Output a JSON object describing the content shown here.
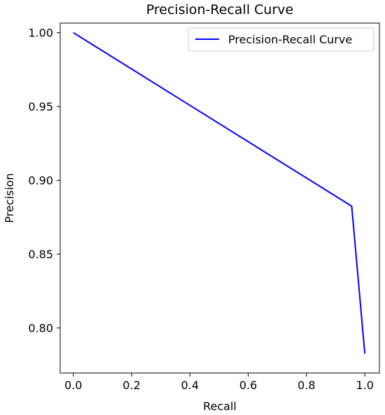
{
  "chart_data": {
    "type": "line",
    "title": "Precision-Recall Curve",
    "xlabel": "Recall",
    "ylabel": "Precision",
    "xlim": [
      -0.045,
      1.05
    ],
    "ylim": [
      0.7695,
      1.0065
    ],
    "xticks": [
      0.0,
      0.2,
      0.4,
      0.6,
      0.8,
      1.0
    ],
    "xtick_labels": [
      "0.0",
      "0.2",
      "0.4",
      "0.6",
      "0.8",
      "1.0"
    ],
    "yticks": [
      0.8,
      0.85,
      0.9,
      0.95,
      1.0
    ],
    "ytick_labels": [
      "0.80",
      "0.85",
      "0.90",
      "0.95",
      "1.00"
    ],
    "grid": false,
    "legend_position": "top-right",
    "series": [
      {
        "name": "Precision-Recall Curve",
        "color": "#0000ff",
        "x": [
          0.0,
          0.955,
          1.0
        ],
        "y": [
          1.0,
          0.8825,
          0.7826
        ]
      }
    ]
  }
}
